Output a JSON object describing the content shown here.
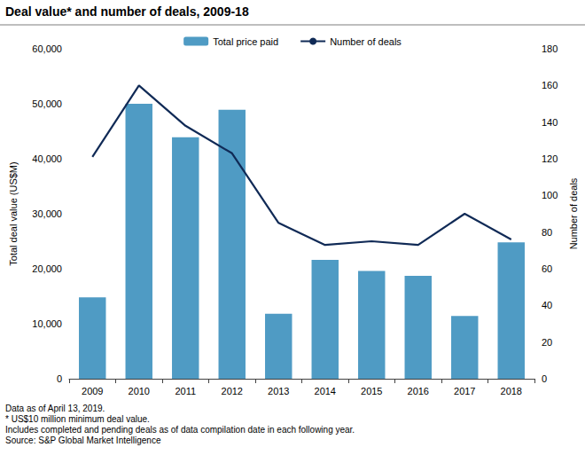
{
  "chart_data": {
    "type": "bar",
    "title": "Deal value* and number of deals, 2009-18",
    "categories": [
      "2009",
      "2010",
      "2011",
      "2012",
      "2013",
      "2014",
      "2015",
      "2016",
      "2017",
      "2018"
    ],
    "series": [
      {
        "name": "Total price paid",
        "type": "bar",
        "color": "#4f9bc4",
        "values": [
          14800,
          50000,
          43900,
          48900,
          11800,
          21600,
          19600,
          18700,
          11400,
          24800
        ]
      },
      {
        "name": "Number of deals",
        "type": "line",
        "axis": "y2",
        "color": "#102a56",
        "marker": "none",
        "values": [
          121,
          160,
          138,
          123,
          85,
          73,
          75,
          73,
          90,
          76
        ]
      }
    ],
    "y_label": "Total deal value (US$M)",
    "y2_label": "Number of deals",
    "ylim": [
      0,
      60000
    ],
    "yticks": [
      0,
      {
        "value": 10000,
        "label": "10,000"
      },
      {
        "value": 20000,
        "label": "20,000"
      },
      {
        "value": 30000,
        "label": "30,000"
      },
      {
        "value": 40000,
        "label": "40,000"
      },
      {
        "value": 50000,
        "label": "50,000"
      },
      {
        "value": 60000,
        "label": "60,000"
      }
    ],
    "y2lim": [
      0,
      180
    ],
    "y2ticks": [
      0,
      20,
      40,
      60,
      80,
      100,
      120,
      140,
      160,
      180
    ],
    "grid": false,
    "legend": "top",
    "notes": [
      "Data as of April 13, 2019.",
      "* US$10 million minimum deal value.",
      "Includes completed and pending deals as of data compilation date in each following year.",
      "Source: S&P Global Market Intelligence"
    ]
  }
}
